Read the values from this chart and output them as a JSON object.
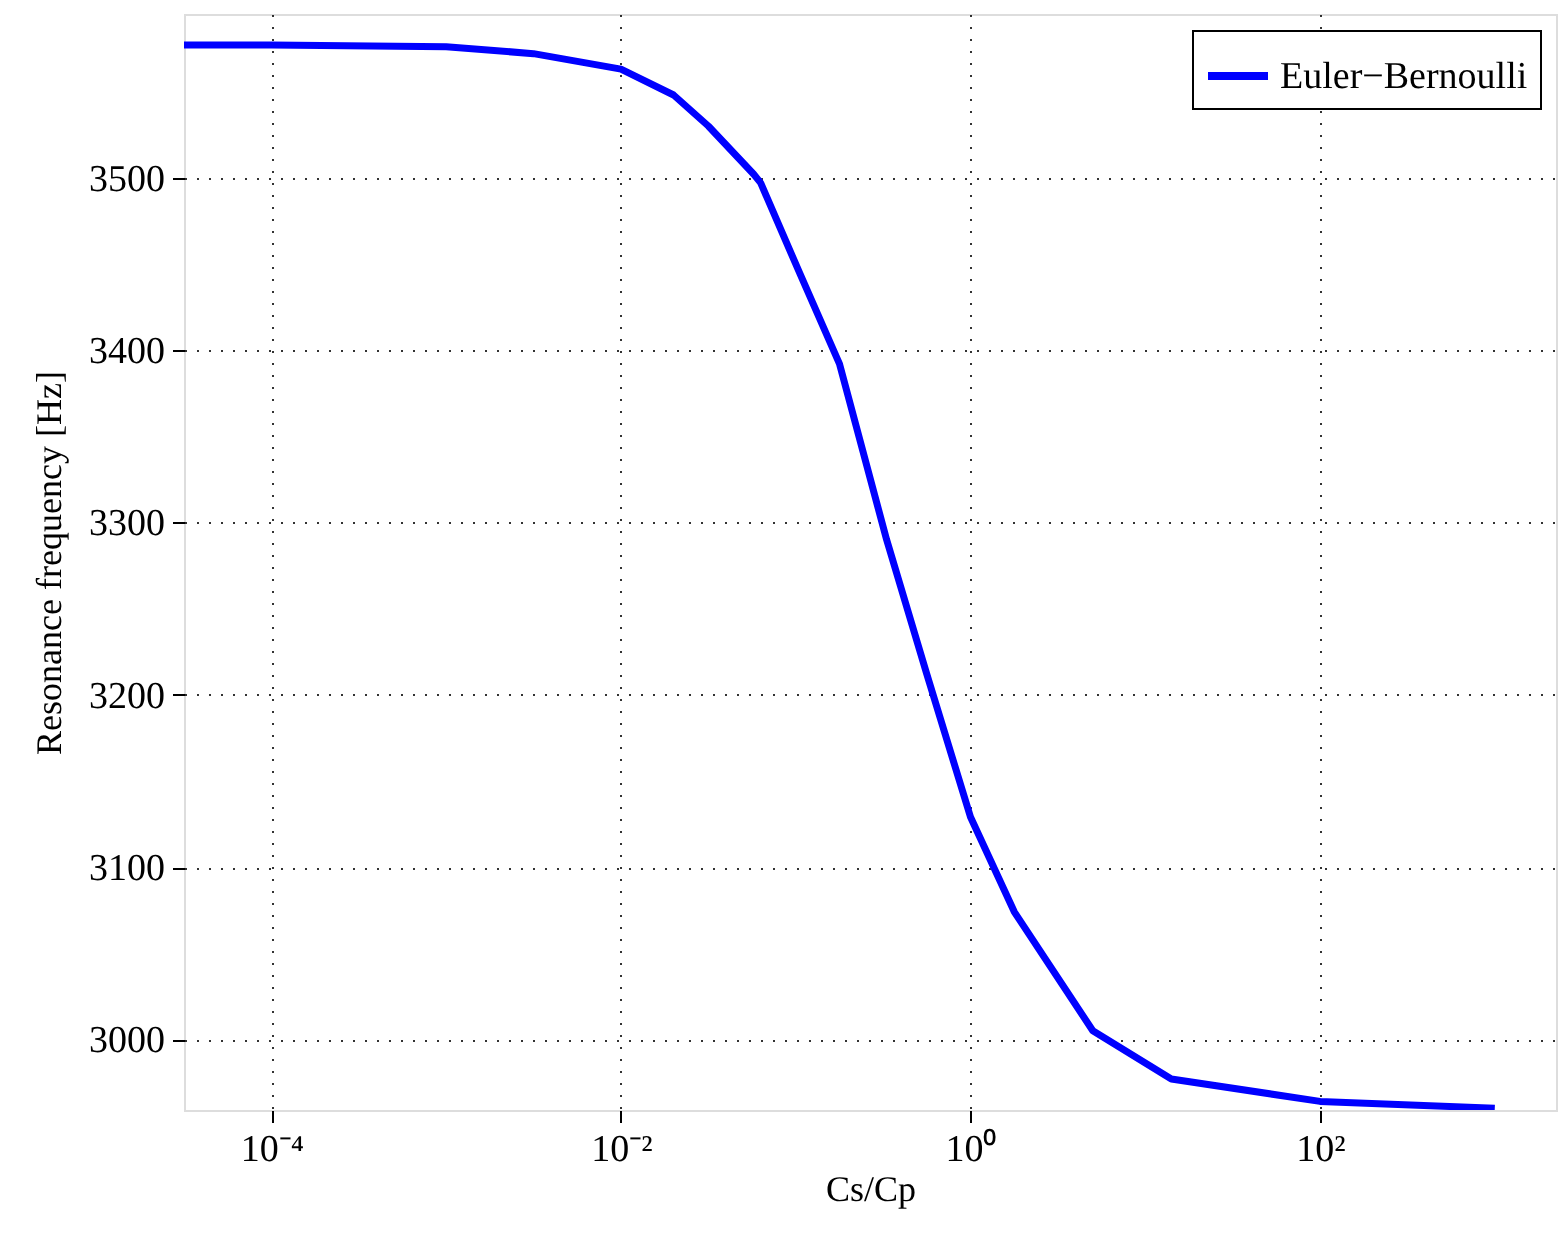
{
  "chart_data": {
    "type": "line",
    "xlabel": "Cs/Cp",
    "ylabel": "Resonance frequency [Hz]",
    "log": "x",
    "grid": true,
    "legend": "top right",
    "line_style": "solid",
    "marker": "none",
    "xlim": [
      3.16e-05,
      2240
    ],
    "ylim": [
      2959,
      3595
    ],
    "xticks": [
      {
        "value": 0.0001,
        "label": "10⁻⁴"
      },
      {
        "value": 0.01,
        "label": "10⁻²"
      },
      {
        "value": 1,
        "label": "10⁰"
      },
      {
        "value": 100,
        "label": "10²"
      }
    ],
    "yticks": [
      3000,
      3100,
      3200,
      3300,
      3400,
      3500
    ],
    "x": [
      3.16e-05,
      0.0001,
      0.001,
      0.00316,
      0.01,
      0.02,
      0.0316,
      0.0575,
      0.063,
      0.106,
      0.178,
      0.331,
      0.562,
      1,
      1.78,
      5.01,
      14.1,
      100,
      1000
    ],
    "series": [
      {
        "name": "Euler−Bernoulli",
        "color": "#0000ff",
        "values": [
          3577,
          3577,
          3576,
          3572,
          3563,
          3548,
          3530,
          3502,
          3497,
          3444,
          3392,
          3290,
          3212,
          3129,
          3074,
          3005,
          2977,
          2964,
          2960
        ]
      }
    ]
  }
}
